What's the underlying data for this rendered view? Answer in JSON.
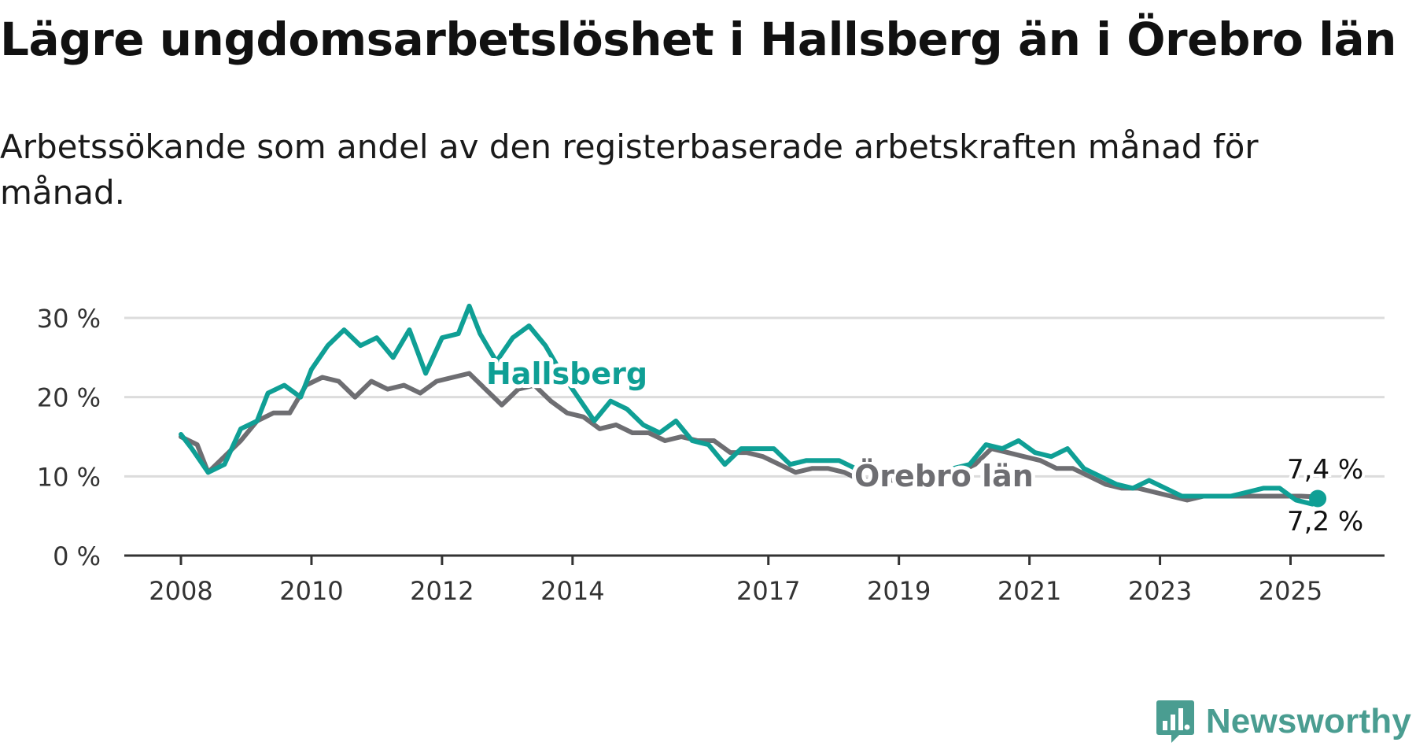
{
  "title": "Lägre ungdomsarbetslöshet i Hallsberg än i Örebro län",
  "subtitle": "Arbetssökande som andel av den registerbaserade arbetskraften månad för månad.",
  "brand": {
    "name": "Newsworthy",
    "color": "#4a9d91"
  },
  "chart_data": {
    "type": "line",
    "title": "Lägre ungdomsarbetslöshet i Hallsberg än i Örebro län",
    "subtitle": "Arbetssökande som andel av den registerbaserade arbetskraften månad för månad.",
    "xlabel": "",
    "ylabel": "",
    "x_tick_labels": [
      "2008",
      "2010",
      "2012",
      "2014",
      "2017",
      "2019",
      "2021",
      "2023",
      "2025"
    ],
    "y_tick_labels": [
      "0 %",
      "10 %",
      "20 %",
      "30 %"
    ],
    "ylim": [
      0,
      30
    ],
    "grid": true,
    "legend": "inline labels on lines",
    "end_labels": {
      "Hallsberg": "7,2 %",
      "Örebro län": "7,4 %"
    },
    "series": [
      {
        "name": "Hallsberg",
        "color": "#0f9f95",
        "points": [
          [
            "2008-01",
            15.3
          ],
          [
            "2008-03",
            13.5
          ],
          [
            "2008-06",
            10.5
          ],
          [
            "2008-09",
            11.5
          ],
          [
            "2008-12",
            16.0
          ],
          [
            "2009-03",
            17.0
          ],
          [
            "2009-05",
            20.5
          ],
          [
            "2009-08",
            21.5
          ],
          [
            "2009-11",
            20.0
          ],
          [
            "2010-01",
            23.5
          ],
          [
            "2010-04",
            26.5
          ],
          [
            "2010-07",
            28.5
          ],
          [
            "2010-10",
            26.5
          ],
          [
            "2011-01",
            27.5
          ],
          [
            "2011-04",
            25.0
          ],
          [
            "2011-07",
            28.5
          ],
          [
            "2011-10",
            23.0
          ],
          [
            "2012-01",
            27.5
          ],
          [
            "2012-04",
            28.0
          ],
          [
            "2012-06",
            31.5
          ],
          [
            "2012-08",
            28.0
          ],
          [
            "2012-11",
            24.5
          ],
          [
            "2013-02",
            27.5
          ],
          [
            "2013-05",
            29.0
          ],
          [
            "2013-08",
            26.5
          ],
          [
            "2013-11",
            23.0
          ],
          [
            "2014-02",
            20.0
          ],
          [
            "2014-05",
            17.0
          ],
          [
            "2014-08",
            19.5
          ],
          [
            "2014-11",
            18.5
          ],
          [
            "2015-02",
            16.5
          ],
          [
            "2015-05",
            15.5
          ],
          [
            "2015-08",
            17.0
          ],
          [
            "2015-11",
            14.5
          ],
          [
            "2016-02",
            14.0
          ],
          [
            "2016-05",
            11.5
          ],
          [
            "2016-08",
            13.5
          ],
          [
            "2016-11",
            13.5
          ],
          [
            "2017-02",
            13.5
          ],
          [
            "2017-05",
            11.5
          ],
          [
            "2017-08",
            12.0
          ],
          [
            "2017-11",
            12.0
          ],
          [
            "2018-02",
            12.0
          ],
          [
            "2018-05",
            11.0
          ],
          [
            "2018-08",
            11.0
          ],
          [
            "2018-11",
            10.5
          ],
          [
            "2019-02",
            10.5
          ],
          [
            "2019-05",
            10.0
          ],
          [
            "2019-08",
            10.5
          ],
          [
            "2019-11",
            11.0
          ],
          [
            "2020-02",
            11.5
          ],
          [
            "2020-05",
            14.0
          ],
          [
            "2020-08",
            13.5
          ],
          [
            "2020-11",
            14.5
          ],
          [
            "2021-02",
            13.0
          ],
          [
            "2021-05",
            12.5
          ],
          [
            "2021-08",
            13.5
          ],
          [
            "2021-11",
            11.0
          ],
          [
            "2022-02",
            10.0
          ],
          [
            "2022-05",
            9.0
          ],
          [
            "2022-08",
            8.5
          ],
          [
            "2022-11",
            9.5
          ],
          [
            "2023-02",
            8.5
          ],
          [
            "2023-05",
            7.5
          ],
          [
            "2023-08",
            7.5
          ],
          [
            "2023-11",
            7.5
          ],
          [
            "2024-02",
            7.5
          ],
          [
            "2024-05",
            8.0
          ],
          [
            "2024-08",
            8.5
          ],
          [
            "2024-11",
            8.5
          ],
          [
            "2025-02",
            7.0
          ],
          [
            "2025-05",
            6.5
          ],
          [
            "2025-06",
            7.2
          ]
        ]
      },
      {
        "name": "Örebro län",
        "color": "#6e6e72",
        "points": [
          [
            "2008-01",
            15.0
          ],
          [
            "2008-04",
            14.0
          ],
          [
            "2008-06",
            10.5
          ],
          [
            "2008-09",
            12.5
          ],
          [
            "2008-12",
            14.5
          ],
          [
            "2009-03",
            17.0
          ],
          [
            "2009-06",
            18.0
          ],
          [
            "2009-09",
            18.0
          ],
          [
            "2009-12",
            21.5
          ],
          [
            "2010-03",
            22.5
          ],
          [
            "2010-06",
            22.0
          ],
          [
            "2010-09",
            20.0
          ],
          [
            "2010-12",
            22.0
          ],
          [
            "2011-03",
            21.0
          ],
          [
            "2011-06",
            21.5
          ],
          [
            "2011-09",
            20.5
          ],
          [
            "2011-12",
            22.0
          ],
          [
            "2012-03",
            22.5
          ],
          [
            "2012-06",
            23.0
          ],
          [
            "2012-09",
            21.0
          ],
          [
            "2012-12",
            19.0
          ],
          [
            "2013-03",
            21.0
          ],
          [
            "2013-06",
            21.5
          ],
          [
            "2013-09",
            19.5
          ],
          [
            "2013-12",
            18.0
          ],
          [
            "2014-03",
            17.5
          ],
          [
            "2014-06",
            16.0
          ],
          [
            "2014-09",
            16.5
          ],
          [
            "2014-12",
            15.5
          ],
          [
            "2015-03",
            15.5
          ],
          [
            "2015-06",
            14.5
          ],
          [
            "2015-09",
            15.0
          ],
          [
            "2015-12",
            14.5
          ],
          [
            "2016-03",
            14.5
          ],
          [
            "2016-06",
            13.0
          ],
          [
            "2016-09",
            13.0
          ],
          [
            "2016-12",
            12.5
          ],
          [
            "2017-03",
            11.5
          ],
          [
            "2017-06",
            10.5
          ],
          [
            "2017-09",
            11.0
          ],
          [
            "2017-12",
            11.0
          ],
          [
            "2018-03",
            10.5
          ],
          [
            "2018-06",
            9.5
          ],
          [
            "2018-09",
            9.5
          ],
          [
            "2018-12",
            9.5
          ],
          [
            "2019-03",
            9.5
          ],
          [
            "2019-06",
            9.5
          ],
          [
            "2019-09",
            10.0
          ],
          [
            "2019-12",
            10.5
          ],
          [
            "2020-03",
            11.5
          ],
          [
            "2020-06",
            13.5
          ],
          [
            "2020-09",
            13.0
          ],
          [
            "2020-12",
            12.5
          ],
          [
            "2021-03",
            12.0
          ],
          [
            "2021-06",
            11.0
          ],
          [
            "2021-09",
            11.0
          ],
          [
            "2021-12",
            10.0
          ],
          [
            "2022-03",
            9.0
          ],
          [
            "2022-06",
            8.5
          ],
          [
            "2022-09",
            8.5
          ],
          [
            "2022-12",
            8.0
          ],
          [
            "2023-03",
            7.5
          ],
          [
            "2023-06",
            7.0
          ],
          [
            "2023-09",
            7.5
          ],
          [
            "2023-12",
            7.5
          ],
          [
            "2024-03",
            7.5
          ],
          [
            "2024-06",
            7.5
          ],
          [
            "2024-09",
            7.5
          ],
          [
            "2024-12",
            7.5
          ],
          [
            "2025-03",
            7.5
          ],
          [
            "2025-06",
            7.4
          ]
        ]
      }
    ]
  }
}
